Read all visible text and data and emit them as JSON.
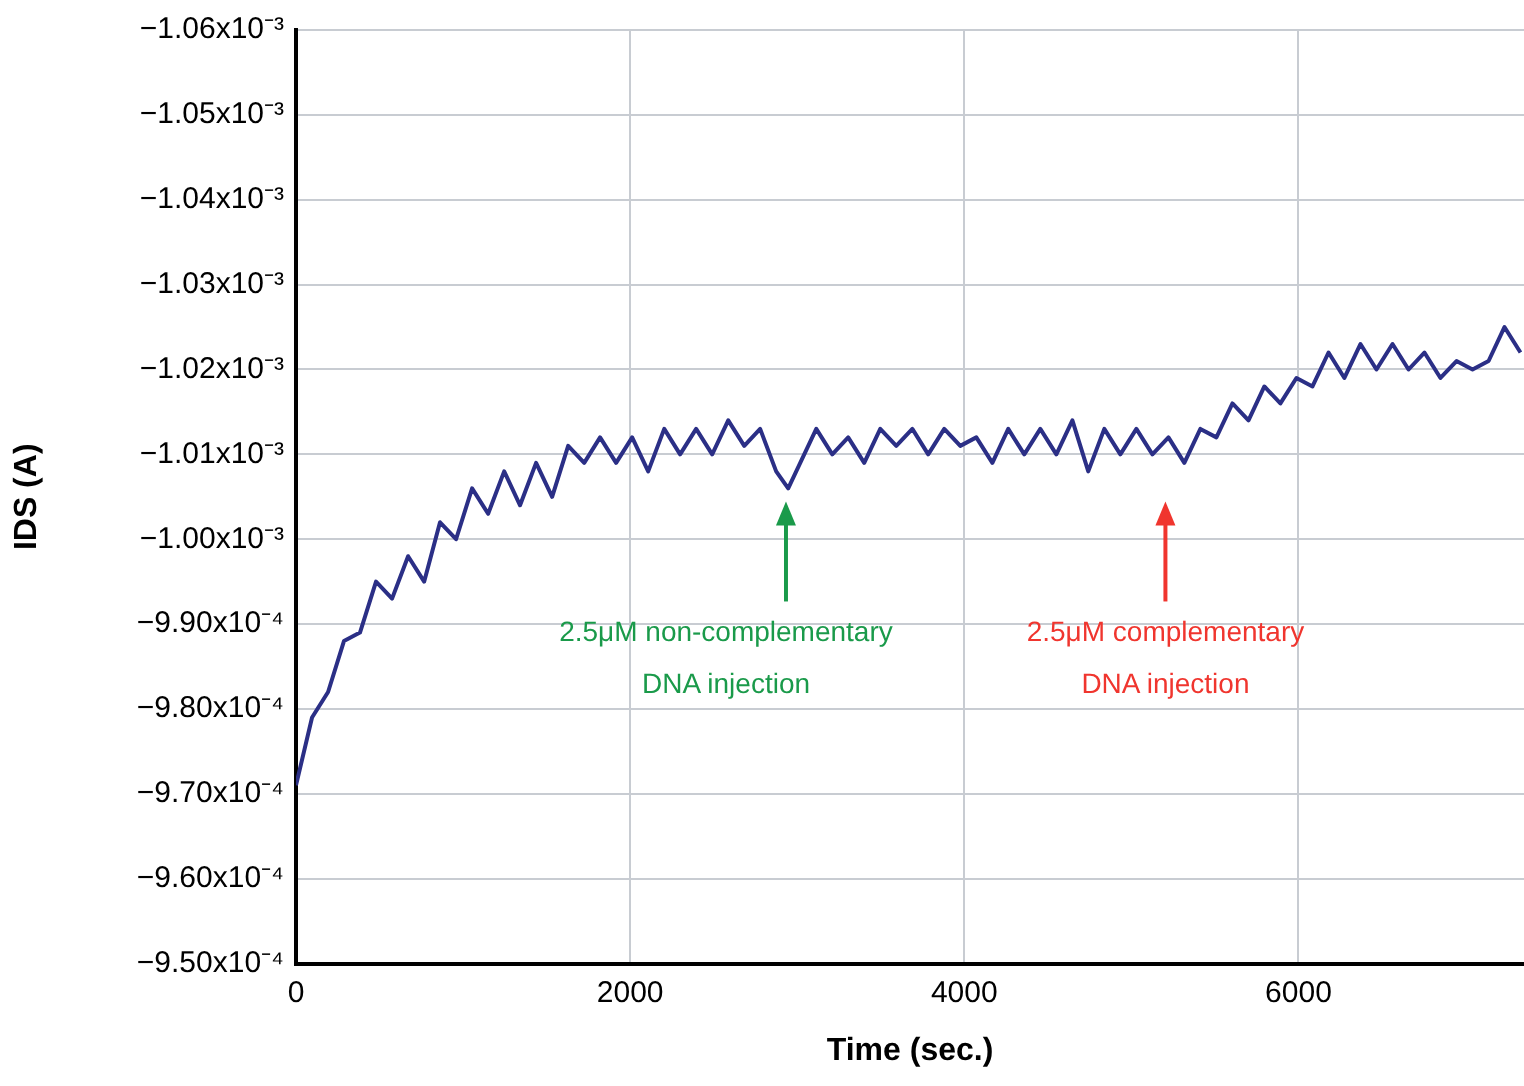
{
  "chart_data": {
    "type": "line",
    "xlabel": "Time (sec.)",
    "ylabel": "IDS (A)",
    "x": [
      0,
      96,
      192,
      287,
      383,
      479,
      575,
      671,
      767,
      862,
      958,
      1054,
      1150,
      1246,
      1341,
      1437,
      1533,
      1629,
      1725,
      1820,
      1916,
      2012,
      2108,
      2204,
      2299,
      2395,
      2491,
      2587,
      2683,
      2778,
      2874,
      2946,
      3018,
      3114,
      3210,
      3305,
      3401,
      3497,
      3593,
      3689,
      3784,
      3880,
      3976,
      4072,
      4168,
      4263,
      4359,
      4455,
      4551,
      4647,
      4742,
      4838,
      4934,
      5030,
      5126,
      5222,
      5317,
      5413,
      5509,
      5605,
      5701,
      5796,
      5892,
      5988,
      6084,
      6180,
      6275,
      6371,
      6467,
      6563,
      6659,
      6754,
      6850,
      6946,
      7042,
      7138,
      7233,
      7329
    ],
    "series": [
      {
        "color": "#2b2f86",
        "values": [
          -0.000971,
          -0.000979,
          -0.000982,
          -0.000988,
          -0.000989,
          -0.000995,
          -0.000993,
          -0.000998,
          -0.000995,
          -0.001002,
          -0.001,
          -0.001006,
          -0.001003,
          -0.001008,
          -0.001004,
          -0.001009,
          -0.001005,
          -0.001011,
          -0.001009,
          -0.001012,
          -0.001009,
          -0.001012,
          -0.001008,
          -0.001013,
          -0.00101,
          -0.001013,
          -0.00101,
          -0.001014,
          -0.001011,
          -0.001013,
          -0.001008,
          -0.001006,
          -0.001009,
          -0.001013,
          -0.00101,
          -0.001012,
          -0.001009,
          -0.001013,
          -0.001011,
          -0.001013,
          -0.00101,
          -0.001013,
          -0.001011,
          -0.001012,
          -0.001009,
          -0.001013,
          -0.00101,
          -0.001013,
          -0.00101,
          -0.001014,
          -0.001008,
          -0.001013,
          -0.00101,
          -0.001013,
          -0.00101,
          -0.001012,
          -0.001009,
          -0.001013,
          -0.001012,
          -0.001016,
          -0.001014,
          -0.001018,
          -0.001016,
          -0.001019,
          -0.001018,
          -0.001022,
          -0.001019,
          -0.001023,
          -0.00102,
          -0.001023,
          -0.00102,
          -0.001022,
          -0.001019,
          -0.001021,
          -0.00102,
          -0.001021,
          -0.001025,
          -0.001022
        ]
      }
    ],
    "xlim": [
      0,
      7350
    ],
    "xticks": [
      0,
      2000,
      4000,
      6000
    ],
    "ylim": [
      -0.00095,
      -0.00106
    ],
    "yticks": [
      {
        "value": -0.00095,
        "label": "−9.50x10⁻⁴"
      },
      {
        "value": -0.00096,
        "label": "−9.60x10⁻⁴"
      },
      {
        "value": -0.00097,
        "label": "−9.70x10⁻⁴"
      },
      {
        "value": -0.00098,
        "label": "−9.80x10⁻⁴"
      },
      {
        "value": -0.00099,
        "label": "−9.90x10⁻⁴"
      },
      {
        "value": -0.001,
        "label": "−1.00x10⁻³"
      },
      {
        "value": -0.00101,
        "label": "−1.01x10⁻³"
      },
      {
        "value": -0.00102,
        "label": "−1.02x10⁻³"
      },
      {
        "value": -0.00103,
        "label": "−1.03x10⁻³"
      },
      {
        "value": -0.00104,
        "label": "−1.04x10⁻³"
      },
      {
        "value": -0.00105,
        "label": "−1.05x10⁻³"
      },
      {
        "value": -0.00106,
        "label": "−1.06x10⁻³"
      }
    ],
    "grid": true,
    "legend": false,
    "marker": "none",
    "line_style": "solid",
    "annotations": [
      "2.5μM non-complementary\nDNA injection",
      "2.5μM complementary\nDNA injection"
    ]
  }
}
